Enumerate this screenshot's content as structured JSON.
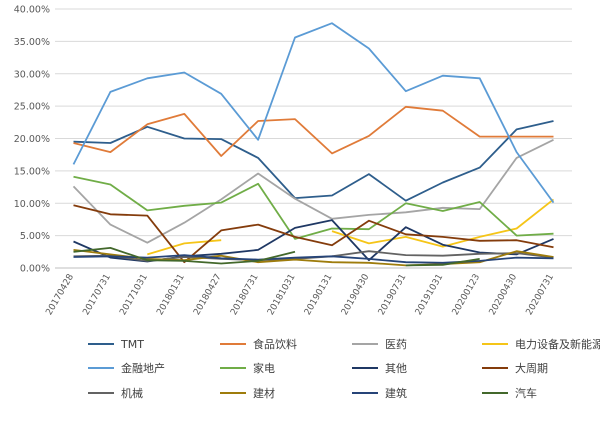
{
  "chart_data": {
    "type": "line",
    "title": "",
    "xlabel": "",
    "ylabel": "",
    "ylim": [
      0,
      40
    ],
    "yticks": [
      0,
      5,
      10,
      15,
      20,
      25,
      30,
      35,
      40
    ],
    "ytick_labels": [
      "0.00%",
      "5.00%",
      "10.00%",
      "15.00%",
      "20.00%",
      "25.00%",
      "30.00%",
      "35.00%",
      "40.00%"
    ],
    "grid": true,
    "legend_position": "bottom",
    "categories": [
      "20170428",
      "20170731",
      "20171031",
      "20180131",
      "20180427",
      "20180731",
      "20181031",
      "20190131",
      "20190430",
      "20190731",
      "20191031",
      "20200123",
      "20200430",
      "20200731"
    ],
    "series": [
      {
        "name": "TMT",
        "color": "#2e5e8c",
        "values": [
          19.5,
          19.3,
          21.8,
          20.0,
          19.9,
          17.0,
          10.8,
          11.2,
          14.5,
          10.4,
          13.2,
          15.5,
          21.4,
          22.7
        ]
      },
      {
        "name": "食品饮料",
        "color": "#e07b39",
        "values": [
          19.3,
          17.9,
          22.2,
          23.8,
          17.3,
          22.7,
          23.0,
          17.7,
          20.4,
          24.9,
          24.3,
          20.3,
          20.3,
          20.3
        ]
      },
      {
        "name": "医药",
        "color": "#a5a5a5",
        "values": [
          12.6,
          6.7,
          3.9,
          7.0,
          10.6,
          14.6,
          10.7,
          7.6,
          8.2,
          8.6,
          9.3,
          9.1,
          17.0,
          19.8
        ]
      },
      {
        "name": "电力设备及新能源",
        "color": "#f5c518",
        "values": [
          null,
          null,
          2.1,
          3.8,
          4.3,
          null,
          null,
          5.7,
          3.8,
          4.8,
          3.3,
          4.8,
          6.1,
          10.6
        ]
      },
      {
        "name": "金融地产",
        "color": "#5b9bd5",
        "values": [
          16.0,
          27.2,
          29.3,
          30.2,
          26.9,
          19.8,
          35.6,
          37.8,
          33.9,
          27.3,
          29.7,
          29.3,
          17.9,
          10.1
        ]
      },
      {
        "name": "家电",
        "color": "#70ad47",
        "values": [
          14.1,
          12.9,
          8.9,
          9.6,
          10.1,
          13.0,
          4.5,
          6.1,
          6.0,
          10.0,
          8.8,
          10.2,
          5.0,
          5.3
        ]
      },
      {
        "name": "其他",
        "color": "#1f3864",
        "values": [
          4.1,
          1.6,
          1.0,
          1.8,
          2.2,
          2.8,
          6.2,
          7.4,
          1.2,
          6.3,
          3.6,
          2.4,
          2.1,
          4.5
        ]
      },
      {
        "name": "大周期",
        "color": "#843c0c",
        "values": [
          9.7,
          8.3,
          8.1,
          0.9,
          5.8,
          6.7,
          4.8,
          3.5,
          7.3,
          5.2,
          4.8,
          4.2,
          4.3,
          3.2
        ]
      },
      {
        "name": "机械",
        "color": "#636363",
        "values": [
          1.8,
          1.9,
          1.1,
          1.7,
          1.4,
          1.2,
          1.4,
          1.8,
          2.6,
          2.0,
          1.9,
          2.2,
          2.3,
          1.6
        ]
      },
      {
        "name": "建材",
        "color": "#9e7c0c",
        "values": [
          2.8,
          2.1,
          1.4,
          1.2,
          1.9,
          0.9,
          1.3,
          0.9,
          0.8,
          0.4,
          0.6,
          0.9,
          2.6,
          1.7
        ]
      },
      {
        "name": "建筑",
        "color": "#264478",
        "values": [
          1.7,
          1.8,
          1.6,
          2.0,
          1.5,
          1.3,
          1.6,
          1.8,
          1.4,
          0.9,
          0.8,
          1.1,
          1.6,
          1.5
        ]
      },
      {
        "name": "汽车",
        "color": "#43682b",
        "values": [
          2.5,
          3.1,
          1.2,
          1.1,
          0.7,
          1.1,
          2.5,
          null,
          null,
          0.4,
          0.5,
          1.4,
          null,
          null
        ]
      }
    ]
  }
}
